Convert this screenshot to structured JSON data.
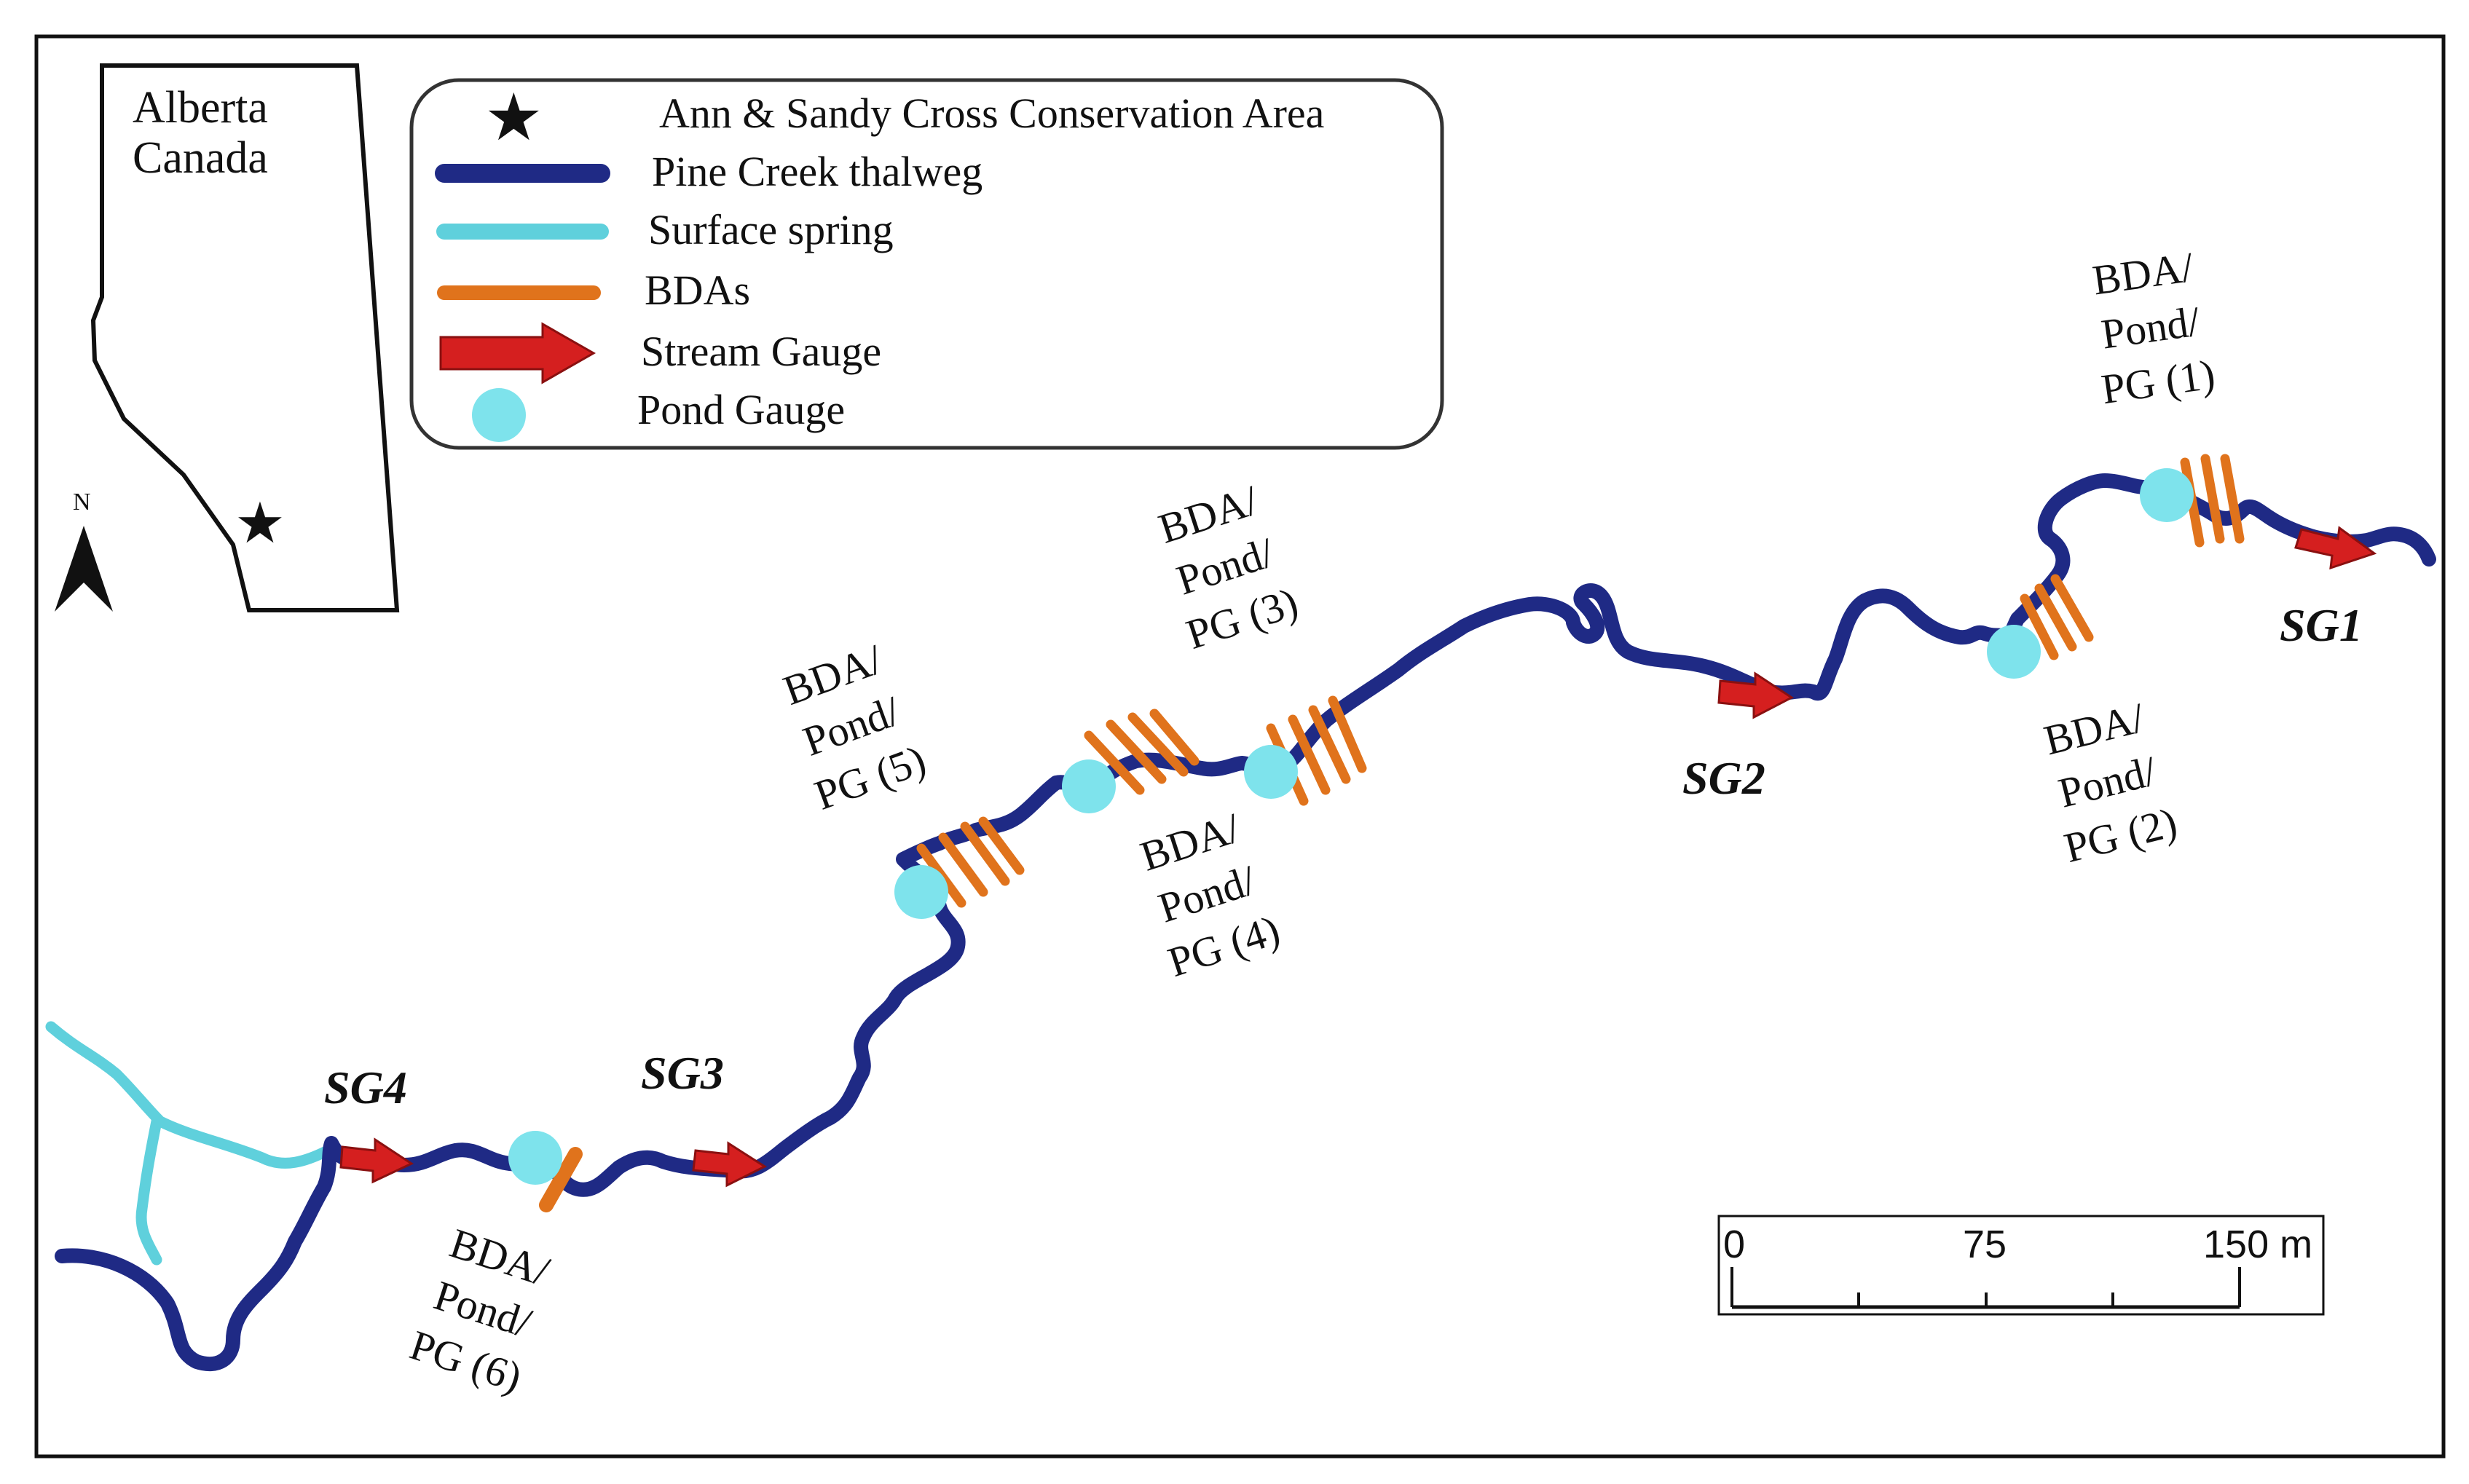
{
  "inset": {
    "region": "Alberta",
    "country": "Canada",
    "north_label": "N"
  },
  "legend": [
    {
      "symbol": "star-icon",
      "label": "Ann & Sandy Cross Conservation Area",
      "color": "#111111"
    },
    {
      "symbol": "thalweg-line",
      "label": "Pine Creek thalweg",
      "color": "#1f2a85"
    },
    {
      "symbol": "spring-line",
      "label": "Surface spring",
      "color": "#5fd0dc"
    },
    {
      "symbol": "bda-line",
      "label": "BDAs",
      "color": "#e0731c"
    },
    {
      "symbol": "arrow-icon",
      "label": "Stream Gauge",
      "color": "#d51f1f"
    },
    {
      "symbol": "circle-icon",
      "label": "Pond Gauge",
      "color": "#7ee3ec"
    }
  ],
  "stream_gauges": [
    "SG1",
    "SG2",
    "SG3",
    "SG4"
  ],
  "bda_labels": [
    {
      "id": "1",
      "lines": [
        "BDA/",
        "Pond/",
        "PG (1)"
      ]
    },
    {
      "id": "2",
      "lines": [
        "BDA/",
        "Pond/",
        "PG (2)"
      ]
    },
    {
      "id": "3",
      "lines": [
        "BDA/",
        "Pond/",
        "PG (3)"
      ]
    },
    {
      "id": "4",
      "lines": [
        "BDA/",
        "Pond/",
        "PG (4)"
      ]
    },
    {
      "id": "5",
      "lines": [
        "BDA/",
        "Pond/",
        "PG (5)"
      ]
    },
    {
      "id": "6",
      "lines": [
        "BDA/",
        "Pond/",
        "PG (6)"
      ]
    }
  ],
  "scale_bar": {
    "ticks": [
      "0",
      "75",
      "150 m"
    ]
  }
}
